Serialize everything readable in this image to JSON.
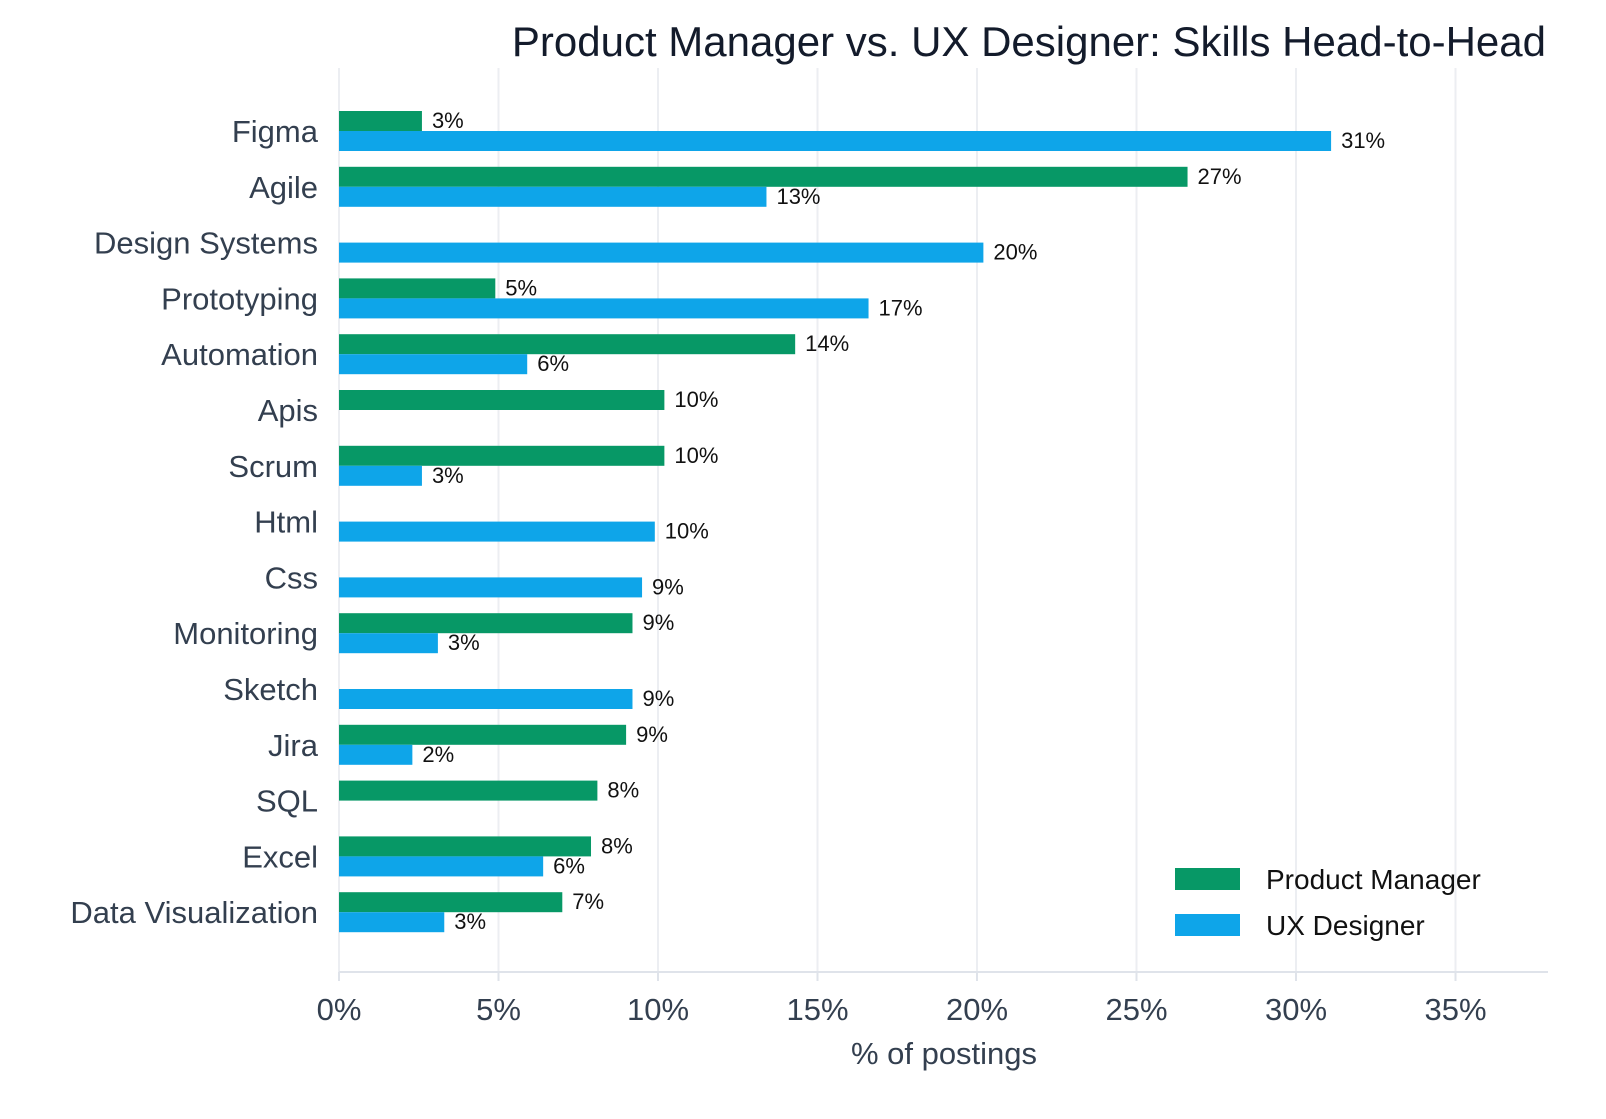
{
  "chart_data": {
    "type": "bar",
    "orientation": "horizontal",
    "title": "Product Manager vs. UX Designer: Skills Head-to-Head",
    "xlabel": "% of postings",
    "ylabel": "",
    "xlim": [
      0,
      38
    ],
    "xticks": [
      0,
      5,
      10,
      15,
      20,
      25,
      30,
      35
    ],
    "xtick_labels": [
      "0%",
      "5%",
      "10%",
      "15%",
      "20%",
      "25%",
      "30%",
      "35%"
    ],
    "grid": "vertical",
    "legend_position": "bottom-right",
    "categories": [
      "Figma",
      "Agile",
      "Design Systems",
      "Prototyping",
      "Automation",
      "Apis",
      "Scrum",
      "Html",
      "Css",
      "Monitoring",
      "Sketch",
      "Jira",
      "SQL",
      "Excel",
      "Data Visualization"
    ],
    "series": [
      {
        "name": "Product Manager",
        "color": "#079866",
        "values": [
          2.6,
          26.6,
          null,
          4.9,
          14.3,
          10.2,
          10.2,
          null,
          null,
          9.2,
          null,
          9.0,
          8.1,
          7.9,
          7.0
        ],
        "labels": [
          "3%",
          "27%",
          "",
          "5%",
          "14%",
          "10%",
          "10%",
          "",
          "",
          "9%",
          "",
          "9%",
          "8%",
          "8%",
          "7%"
        ]
      },
      {
        "name": "UX Designer",
        "color": "#0ea5e9",
        "values": [
          31.1,
          13.4,
          20.2,
          16.6,
          5.9,
          null,
          2.6,
          9.9,
          9.5,
          3.1,
          9.2,
          2.3,
          null,
          6.4,
          3.3
        ],
        "labels": [
          "31%",
          "13%",
          "20%",
          "17%",
          "6%",
          "",
          "3%",
          "10%",
          "9%",
          "3%",
          "9%",
          "2%",
          "",
          "6%",
          "3%"
        ]
      }
    ]
  }
}
